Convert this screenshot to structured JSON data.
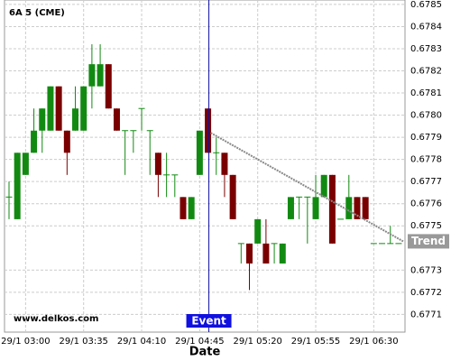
{
  "chart_data": {
    "type": "candlestick",
    "title": "6A 5 (CME)",
    "x_label": "Date",
    "watermark": "www.delkos.com",
    "event_label": "Event",
    "trend_label": "Trend",
    "trend_values": [
      0.67792,
      0.67743
    ],
    "categories": [
      null,
      null,
      "29/1 03:00",
      null,
      null,
      null,
      null,
      null,
      null,
      "29/1 03:35",
      null,
      null,
      null,
      null,
      null,
      null,
      "29/1 04:10",
      null,
      null,
      null,
      null,
      null,
      null,
      "29/1 04:45",
      null,
      null,
      null,
      null,
      null,
      null,
      "29/1 05:20",
      null,
      null,
      null,
      null,
      null,
      null,
      "29/1 05:55",
      null,
      null,
      null,
      null,
      null,
      null,
      "29/1 06:30",
      null,
      null,
      null
    ],
    "up_color": "#128a12",
    "down_color": "#7a0000",
    "open": [
      0.67763,
      0.67753,
      0.67773,
      0.67783,
      0.67793,
      0.67793,
      0.67813,
      0.67793,
      0.67793,
      0.67793,
      0.67813,
      0.67813,
      0.67823,
      0.67803,
      0.67793,
      0.67793,
      0.67803,
      0.67793,
      0.67783,
      0.67773,
      0.67773,
      0.67763,
      0.67753,
      0.67773,
      0.67803,
      0.67783,
      0.67783,
      0.67773,
      0.67742,
      0.67742,
      0.67742,
      0.67742,
      0.67742,
      0.67733,
      0.67753,
      0.67763,
      0.67763,
      0.67753,
      0.67763,
      0.67773,
      0.67753,
      0.67753,
      0.67763,
      0.67763,
      0.67742,
      0.67742,
      0.67742,
      0.67742
    ],
    "high": [
      0.6777,
      0.67783,
      0.67783,
      0.67803,
      0.67803,
      0.67813,
      0.67813,
      0.67793,
      0.67813,
      0.67813,
      0.67832,
      0.67832,
      0.67823,
      0.67803,
      0.67793,
      0.67793,
      0.67803,
      0.67793,
      0.67783,
      0.67783,
      0.67773,
      0.67763,
      0.67763,
      0.67793,
      0.67803,
      0.6779,
      0.67783,
      0.67773,
      0.67742,
      0.67742,
      0.67753,
      0.67753,
      0.67742,
      0.67742,
      0.67763,
      0.67763,
      0.67763,
      0.67773,
      0.67773,
      0.67773,
      0.67753,
      0.67773,
      0.67763,
      0.67763,
      0.67742,
      0.67742,
      0.6775,
      0.67742
    ],
    "low": [
      0.67753,
      0.67753,
      0.67773,
      0.67783,
      0.67783,
      0.67793,
      0.67793,
      0.67773,
      0.67793,
      0.67793,
      0.67803,
      0.67813,
      0.67803,
      0.67793,
      0.67773,
      0.67783,
      0.67793,
      0.67773,
      0.67763,
      0.67763,
      0.67763,
      0.67753,
      0.67753,
      0.67773,
      0.67783,
      0.67773,
      0.67763,
      0.67753,
      0.67733,
      0.67721,
      0.67742,
      0.67733,
      0.67733,
      0.67733,
      0.67753,
      0.67753,
      0.67742,
      0.67753,
      0.67763,
      0.67742,
      0.67753,
      0.67753,
      0.67753,
      0.67753,
      0.67742,
      0.67742,
      0.67742,
      0.67742
    ],
    "close": [
      0.67763,
      0.67783,
      0.67783,
      0.67793,
      0.67803,
      0.67813,
      0.67793,
      0.67783,
      0.67803,
      0.67813,
      0.67823,
      0.67823,
      0.67803,
      0.67793,
      0.67793,
      0.67793,
      0.67803,
      0.67793,
      0.67773,
      0.67773,
      0.67773,
      0.67753,
      0.67763,
      0.67793,
      0.67783,
      0.67783,
      0.67773,
      0.67753,
      0.67742,
      0.67733,
      0.67753,
      0.67733,
      0.67742,
      0.67742,
      0.67763,
      0.67763,
      0.67763,
      0.67763,
      0.67773,
      0.67742,
      0.67753,
      0.67763,
      0.67753,
      0.67753,
      0.67742,
      0.67742,
      0.67742,
      0.67742
    ],
    "ylim": [
      0.67702,
      0.67852
    ],
    "yticks": [
      0.6785,
      0.6784,
      0.6783,
      0.6782,
      0.6781,
      {
        "value": 0.678,
        "label": "0.6780"
      },
      0.6779,
      0.6778,
      0.6777,
      0.6776,
      0.6775,
      0.6773,
      0.6772,
      0.6771
    ],
    "grid": true
  }
}
